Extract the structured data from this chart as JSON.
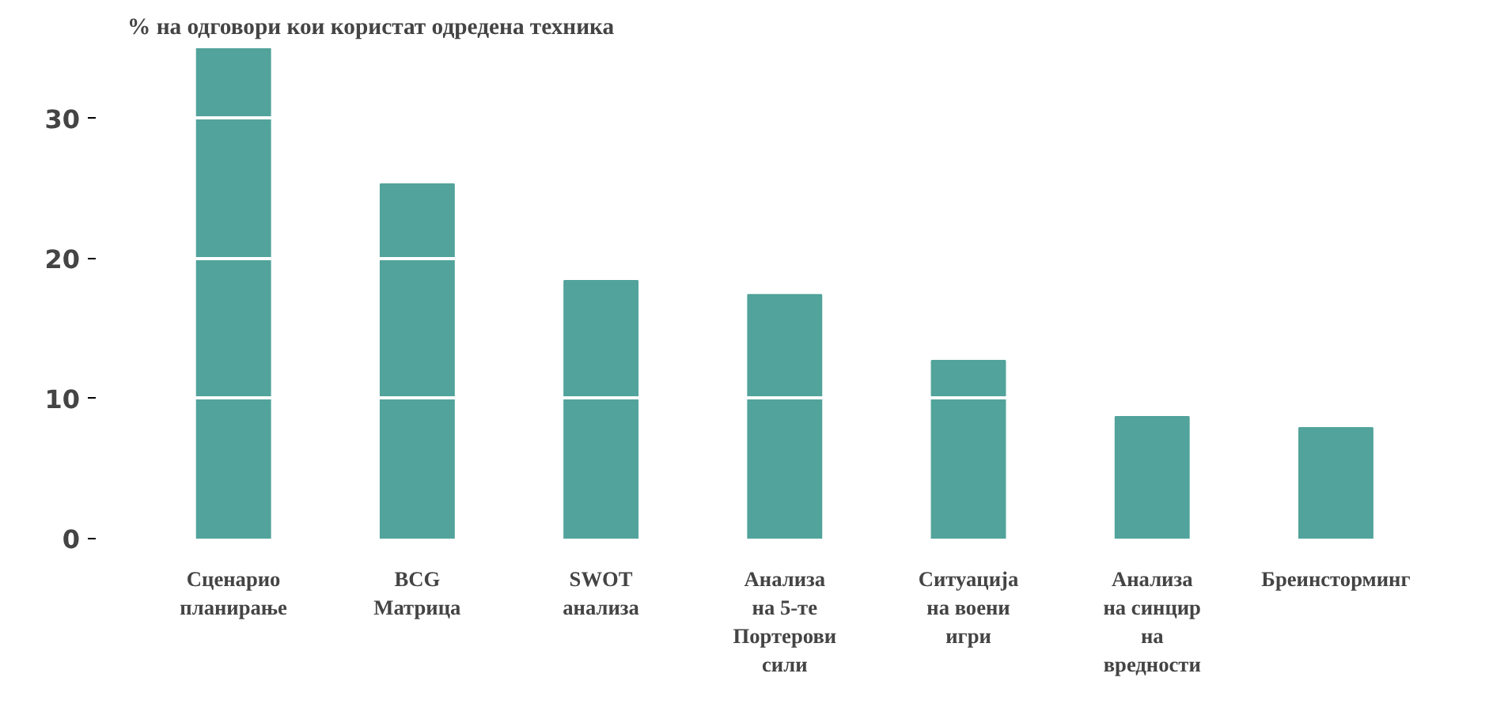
{
  "chart_data": {
    "type": "bar",
    "title": "% на одговори кои користат одредена техника",
    "categories": [
      "Сценарио\nпланирање",
      "BCG\nМатрица",
      "SWOT\nанализа",
      "Анализа\nна 5-те\nПортерови\nсили",
      "Ситуација\nна воени\nигри",
      "Анализа\nна синцир\nна\nвредности",
      "Бреинсторминг"
    ],
    "values": [
      35,
      25.3,
      18.4,
      17.4,
      12.7,
      8.7,
      7.9
    ],
    "color": "#52a39b",
    "ylim": [
      0,
      35
    ],
    "yticks": [
      0,
      10,
      20,
      30
    ],
    "grid": "y"
  }
}
